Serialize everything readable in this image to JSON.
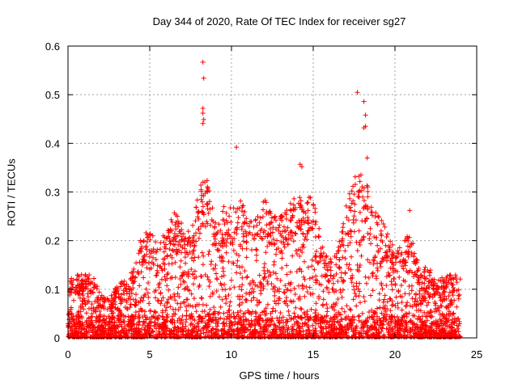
{
  "chart_data": {
    "type": "scatter",
    "title": "Day 344 of 2020, Rate Of TEC Index for receiver sg27",
    "xlabel": "GPS time / hours",
    "ylabel": "ROTI / TECUs",
    "xlim": [
      0,
      25
    ],
    "ylim": [
      0,
      0.6
    ],
    "xticks": [
      0,
      5,
      10,
      15,
      20,
      25
    ],
    "yticks": [
      0,
      0.1,
      0.2,
      0.3,
      0.4,
      0.5,
      0.6
    ],
    "xtick_labels": [
      "0",
      "5",
      "10",
      "15",
      "20",
      "25"
    ],
    "ytick_labels": [
      "0",
      "0.1",
      "0.2",
      "0.3",
      "0.4",
      "0.5",
      "0.6"
    ],
    "grid": true,
    "marker": "+",
    "color": "#ff0000",
    "series": [
      {
        "envelope_description": "dense cloud of ROTI samples, every ~30 s over 0–24 h",
        "upper_envelope": {
          "x": [
            0,
            0.5,
            1,
            1.5,
            2,
            2.5,
            3,
            3.5,
            4,
            4.5,
            5,
            5.5,
            6,
            6.5,
            7,
            7.5,
            8,
            8.5,
            9,
            9.5,
            10,
            10.5,
            11,
            11.5,
            12,
            12.5,
            13,
            13.5,
            14,
            14.5,
            15,
            15.5,
            16,
            16.5,
            17,
            17.5,
            18,
            18.5,
            19,
            19.5,
            20,
            20.5,
            21,
            21.5,
            22,
            22.5,
            23,
            23.5,
            24
          ],
          "y": [
            0.12,
            0.13,
            0.13,
            0.13,
            0.09,
            0.08,
            0.11,
            0.12,
            0.14,
            0.21,
            0.23,
            0.19,
            0.22,
            0.26,
            0.24,
            0.22,
            0.31,
            0.33,
            0.24,
            0.27,
            0.27,
            0.3,
            0.24,
            0.25,
            0.29,
            0.25,
            0.25,
            0.27,
            0.3,
            0.28,
            0.3,
            0.2,
            0.16,
            0.18,
            0.28,
            0.33,
            0.34,
            0.3,
            0.26,
            0.22,
            0.18,
            0.2,
            0.22,
            0.14,
            0.15,
            0.12,
            0.13,
            0.13,
            0.14
          ]
        },
        "outliers": {
          "x": [
            8.25,
            8.3,
            8.25,
            8.25,
            8.3,
            8.25,
            10.3,
            14.2,
            14.3,
            17.7,
            18.1,
            18.2,
            18.2,
            18.1,
            18.3,
            20.9
          ],
          "y": [
            0.567,
            0.534,
            0.472,
            0.462,
            0.449,
            0.441,
            0.392,
            0.357,
            0.352,
            0.505,
            0.486,
            0.458,
            0.435,
            0.432,
            0.37,
            0.262
          ]
        }
      }
    ]
  }
}
